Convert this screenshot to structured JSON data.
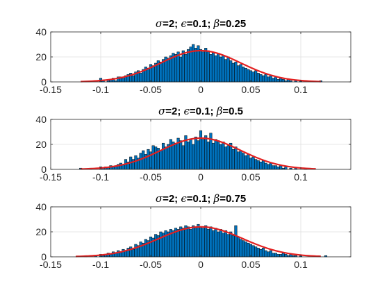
{
  "chart_data": [
    {
      "type": "bar",
      "title": "σ=2; ϵ=0.1; β=0.25",
      "title_parts": [
        "σ",
        "=2; ",
        "ϵ",
        "=0.1; ",
        "β",
        "=0.25"
      ],
      "xlim": [
        -0.15,
        0.15
      ],
      "ylim": [
        0,
        40
      ],
      "xticks": [
        "-0.15",
        "-0.1",
        "-0.05",
        "0",
        "0.05",
        "0.1"
      ],
      "yticks": [
        "0",
        "20",
        "40"
      ],
      "grid": true,
      "bin_width": 0.0025,
      "bins": [
        {
          "x": -0.1,
          "y": 3
        },
        {
          "x": -0.0975,
          "y": 1
        },
        {
          "x": -0.0925,
          "y": 2
        },
        {
          "x": -0.09,
          "y": 2
        },
        {
          "x": -0.0875,
          "y": 3
        },
        {
          "x": -0.085,
          "y": 1
        },
        {
          "x": -0.0825,
          "y": 4
        },
        {
          "x": -0.08,
          "y": 4
        },
        {
          "x": -0.0775,
          "y": 3
        },
        {
          "x": -0.075,
          "y": 5
        },
        {
          "x": -0.0725,
          "y": 6
        },
        {
          "x": -0.07,
          "y": 7
        },
        {
          "x": -0.0675,
          "y": 5
        },
        {
          "x": -0.065,
          "y": 8
        },
        {
          "x": -0.0625,
          "y": 9
        },
        {
          "x": -0.06,
          "y": 7
        },
        {
          "x": -0.0575,
          "y": 10
        },
        {
          "x": -0.055,
          "y": 12
        },
        {
          "x": -0.0525,
          "y": 11
        },
        {
          "x": -0.05,
          "y": 14
        },
        {
          "x": -0.0475,
          "y": 13
        },
        {
          "x": -0.045,
          "y": 15
        },
        {
          "x": -0.0425,
          "y": 17
        },
        {
          "x": -0.04,
          "y": 16
        },
        {
          "x": -0.0375,
          "y": 18
        },
        {
          "x": -0.035,
          "y": 20
        },
        {
          "x": -0.0325,
          "y": 19
        },
        {
          "x": -0.03,
          "y": 21
        },
        {
          "x": -0.0275,
          "y": 23
        },
        {
          "x": -0.025,
          "y": 22
        },
        {
          "x": -0.0225,
          "y": 24
        },
        {
          "x": -0.02,
          "y": 20
        },
        {
          "x": -0.0175,
          "y": 25
        },
        {
          "x": -0.015,
          "y": 22
        },
        {
          "x": -0.0125,
          "y": 26
        },
        {
          "x": -0.01,
          "y": 28
        },
        {
          "x": -0.0075,
          "y": 30
        },
        {
          "x": -0.005,
          "y": 27
        },
        {
          "x": -0.0025,
          "y": 29
        },
        {
          "x": 0.0,
          "y": 26
        },
        {
          "x": 0.0025,
          "y": 24
        },
        {
          "x": 0.005,
          "y": 27
        },
        {
          "x": 0.0075,
          "y": 25
        },
        {
          "x": 0.01,
          "y": 22
        },
        {
          "x": 0.0125,
          "y": 24
        },
        {
          "x": 0.015,
          "y": 21
        },
        {
          "x": 0.0175,
          "y": 23
        },
        {
          "x": 0.02,
          "y": 20
        },
        {
          "x": 0.0225,
          "y": 21
        },
        {
          "x": 0.025,
          "y": 18
        },
        {
          "x": 0.0275,
          "y": 20
        },
        {
          "x": 0.03,
          "y": 17
        },
        {
          "x": 0.0325,
          "y": 15
        },
        {
          "x": 0.035,
          "y": 16
        },
        {
          "x": 0.0375,
          "y": 13
        },
        {
          "x": 0.04,
          "y": 14
        },
        {
          "x": 0.0425,
          "y": 12
        },
        {
          "x": 0.045,
          "y": 11
        },
        {
          "x": 0.0475,
          "y": 10
        },
        {
          "x": 0.05,
          "y": 9
        },
        {
          "x": 0.0525,
          "y": 8
        },
        {
          "x": 0.055,
          "y": 9
        },
        {
          "x": 0.0575,
          "y": 7
        },
        {
          "x": 0.06,
          "y": 6
        },
        {
          "x": 0.0625,
          "y": 5
        },
        {
          "x": 0.065,
          "y": 6
        },
        {
          "x": 0.0675,
          "y": 4
        },
        {
          "x": 0.07,
          "y": 5
        },
        {
          "x": 0.0725,
          "y": 3
        },
        {
          "x": 0.075,
          "y": 4
        },
        {
          "x": 0.0775,
          "y": 2
        },
        {
          "x": 0.08,
          "y": 3
        },
        {
          "x": 0.0825,
          "y": 2
        },
        {
          "x": 0.085,
          "y": 1
        },
        {
          "x": 0.0875,
          "y": 2
        },
        {
          "x": 0.09,
          "y": 1
        },
        {
          "x": 0.095,
          "y": 1
        },
        {
          "x": 0.1,
          "y": 1
        },
        {
          "x": 0.12,
          "y": 1
        }
      ],
      "fit": {
        "type": "normal",
        "mean": 0,
        "peak": 25,
        "std": 0.04,
        "x_range": [
          -0.12,
          0.12
        ]
      }
    },
    {
      "type": "bar",
      "title": "σ=2; ϵ=0.1; β=0.5",
      "title_parts": [
        "σ",
        "=2; ",
        "ϵ",
        "=0.1; ",
        "β",
        "=0.5"
      ],
      "xlim": [
        -0.15,
        0.15
      ],
      "ylim": [
        0,
        40
      ],
      "xticks": [
        "-0.15",
        "-0.1",
        "-0.05",
        "0",
        "0.05",
        "0.1"
      ],
      "yticks": [
        "0",
        "20",
        "40"
      ],
      "grid": true,
      "bin_width": 0.0025,
      "bins": [
        {
          "x": -0.12,
          "y": 1
        },
        {
          "x": -0.11,
          "y": 1
        },
        {
          "x": -0.1,
          "y": 2
        },
        {
          "x": -0.0975,
          "y": 1
        },
        {
          "x": -0.095,
          "y": 2
        },
        {
          "x": -0.0925,
          "y": 2
        },
        {
          "x": -0.09,
          "y": 3
        },
        {
          "x": -0.0875,
          "y": 2
        },
        {
          "x": -0.085,
          "y": 3
        },
        {
          "x": -0.0825,
          "y": 4
        },
        {
          "x": -0.08,
          "y": 5
        },
        {
          "x": -0.0775,
          "y": 4
        },
        {
          "x": -0.075,
          "y": 8
        },
        {
          "x": -0.0725,
          "y": 6
        },
        {
          "x": -0.07,
          "y": 10
        },
        {
          "x": -0.0675,
          "y": 8
        },
        {
          "x": -0.065,
          "y": 11
        },
        {
          "x": -0.0625,
          "y": 9
        },
        {
          "x": -0.06,
          "y": 13
        },
        {
          "x": -0.0575,
          "y": 15
        },
        {
          "x": -0.055,
          "y": 12
        },
        {
          "x": -0.0525,
          "y": 16
        },
        {
          "x": -0.05,
          "y": 14
        },
        {
          "x": -0.0475,
          "y": 19
        },
        {
          "x": -0.045,
          "y": 18
        },
        {
          "x": -0.0425,
          "y": 17
        },
        {
          "x": -0.04,
          "y": 15
        },
        {
          "x": -0.0375,
          "y": 21
        },
        {
          "x": -0.035,
          "y": 18
        },
        {
          "x": -0.0325,
          "y": 20
        },
        {
          "x": -0.03,
          "y": 24
        },
        {
          "x": -0.0275,
          "y": 22
        },
        {
          "x": -0.025,
          "y": 21
        },
        {
          "x": -0.0225,
          "y": 25
        },
        {
          "x": -0.02,
          "y": 23
        },
        {
          "x": -0.0175,
          "y": 19
        },
        {
          "x": -0.015,
          "y": 27
        },
        {
          "x": -0.0125,
          "y": 22
        },
        {
          "x": -0.01,
          "y": 24
        },
        {
          "x": -0.0075,
          "y": 20
        },
        {
          "x": -0.005,
          "y": 26
        },
        {
          "x": -0.0025,
          "y": 23
        },
        {
          "x": 0.0,
          "y": 31
        },
        {
          "x": 0.0025,
          "y": 24
        },
        {
          "x": 0.005,
          "y": 27
        },
        {
          "x": 0.0075,
          "y": 22
        },
        {
          "x": 0.01,
          "y": 29
        },
        {
          "x": 0.0125,
          "y": 21
        },
        {
          "x": 0.015,
          "y": 24
        },
        {
          "x": 0.0175,
          "y": 23
        },
        {
          "x": 0.02,
          "y": 20
        },
        {
          "x": 0.0225,
          "y": 22
        },
        {
          "x": 0.025,
          "y": 18
        },
        {
          "x": 0.0275,
          "y": 19
        },
        {
          "x": 0.03,
          "y": 21
        },
        {
          "x": 0.0325,
          "y": 16
        },
        {
          "x": 0.035,
          "y": 18
        },
        {
          "x": 0.0375,
          "y": 14
        },
        {
          "x": 0.04,
          "y": 15
        },
        {
          "x": 0.0425,
          "y": 13
        },
        {
          "x": 0.045,
          "y": 11
        },
        {
          "x": 0.0475,
          "y": 12
        },
        {
          "x": 0.05,
          "y": 9
        },
        {
          "x": 0.0525,
          "y": 10
        },
        {
          "x": 0.055,
          "y": 8
        },
        {
          "x": 0.0575,
          "y": 7
        },
        {
          "x": 0.06,
          "y": 6
        },
        {
          "x": 0.0625,
          "y": 7
        },
        {
          "x": 0.065,
          "y": 5
        },
        {
          "x": 0.0675,
          "y": 4
        },
        {
          "x": 0.07,
          "y": 5
        },
        {
          "x": 0.0725,
          "y": 3
        },
        {
          "x": 0.075,
          "y": 3
        },
        {
          "x": 0.0775,
          "y": 2
        },
        {
          "x": 0.08,
          "y": 3
        },
        {
          "x": 0.0825,
          "y": 1
        },
        {
          "x": 0.085,
          "y": 2
        },
        {
          "x": 0.09,
          "y": 1
        },
        {
          "x": 0.095,
          "y": 1
        },
        {
          "x": 0.105,
          "y": 1
        }
      ],
      "fit": {
        "type": "normal",
        "mean": 0,
        "peak": 25,
        "std": 0.04,
        "x_range": [
          -0.12,
          0.115
        ]
      }
    },
    {
      "type": "bar",
      "title": "σ=2; ϵ=0.1; β=0.75",
      "title_parts": [
        "σ",
        "=2; ",
        "ϵ",
        "=0.1; ",
        "β",
        "=0.75"
      ],
      "xlim": [
        -0.15,
        0.15
      ],
      "ylim": [
        0,
        40
      ],
      "xticks": [
        "-0.15",
        "-0.1",
        "-0.05",
        "0",
        "0.05",
        "0.1"
      ],
      "yticks": [
        "0",
        "20",
        "40"
      ],
      "grid": true,
      "bin_width": 0.0025,
      "bins": [
        {
          "x": -0.115,
          "y": 1
        },
        {
          "x": -0.105,
          "y": 1
        },
        {
          "x": -0.1,
          "y": 2
        },
        {
          "x": -0.0975,
          "y": 1
        },
        {
          "x": -0.095,
          "y": 2
        },
        {
          "x": -0.0925,
          "y": 3
        },
        {
          "x": -0.09,
          "y": 2
        },
        {
          "x": -0.0875,
          "y": 4
        },
        {
          "x": -0.085,
          "y": 3
        },
        {
          "x": -0.0825,
          "y": 5
        },
        {
          "x": -0.08,
          "y": 4
        },
        {
          "x": -0.0775,
          "y": 6
        },
        {
          "x": -0.075,
          "y": 5
        },
        {
          "x": -0.0725,
          "y": 7
        },
        {
          "x": -0.07,
          "y": 8
        },
        {
          "x": -0.0675,
          "y": 6
        },
        {
          "x": -0.065,
          "y": 10
        },
        {
          "x": -0.0625,
          "y": 9
        },
        {
          "x": -0.06,
          "y": 12
        },
        {
          "x": -0.0575,
          "y": 11
        },
        {
          "x": -0.055,
          "y": 14
        },
        {
          "x": -0.0525,
          "y": 13
        },
        {
          "x": -0.05,
          "y": 16
        },
        {
          "x": -0.0475,
          "y": 15
        },
        {
          "x": -0.045,
          "y": 18
        },
        {
          "x": -0.0425,
          "y": 17
        },
        {
          "x": -0.04,
          "y": 20
        },
        {
          "x": -0.0375,
          "y": 19
        },
        {
          "x": -0.035,
          "y": 21
        },
        {
          "x": -0.0325,
          "y": 20
        },
        {
          "x": -0.03,
          "y": 22
        },
        {
          "x": -0.0275,
          "y": 21
        },
        {
          "x": -0.025,
          "y": 23
        },
        {
          "x": -0.0225,
          "y": 22
        },
        {
          "x": -0.02,
          "y": 24
        },
        {
          "x": -0.0175,
          "y": 23
        },
        {
          "x": -0.015,
          "y": 25
        },
        {
          "x": -0.0125,
          "y": 24
        },
        {
          "x": -0.01,
          "y": 22
        },
        {
          "x": -0.0075,
          "y": 25
        },
        {
          "x": -0.005,
          "y": 23
        },
        {
          "x": -0.0025,
          "y": 26
        },
        {
          "x": 0.0,
          "y": 24
        },
        {
          "x": 0.0025,
          "y": 23
        },
        {
          "x": 0.005,
          "y": 25
        },
        {
          "x": 0.0075,
          "y": 22
        },
        {
          "x": 0.01,
          "y": 24
        },
        {
          "x": 0.0125,
          "y": 21
        },
        {
          "x": 0.015,
          "y": 23
        },
        {
          "x": 0.0175,
          "y": 20
        },
        {
          "x": 0.02,
          "y": 22
        },
        {
          "x": 0.0225,
          "y": 19
        },
        {
          "x": 0.025,
          "y": 21
        },
        {
          "x": 0.0275,
          "y": 18
        },
        {
          "x": 0.03,
          "y": 20
        },
        {
          "x": 0.0325,
          "y": 17
        },
        {
          "x": 0.035,
          "y": 25
        },
        {
          "x": 0.0375,
          "y": 16
        },
        {
          "x": 0.04,
          "y": 14
        },
        {
          "x": 0.0425,
          "y": 13
        },
        {
          "x": 0.045,
          "y": 12
        },
        {
          "x": 0.0475,
          "y": 11
        },
        {
          "x": 0.05,
          "y": 10
        },
        {
          "x": 0.0525,
          "y": 9
        },
        {
          "x": 0.055,
          "y": 8
        },
        {
          "x": 0.0575,
          "y": 7
        },
        {
          "x": 0.06,
          "y": 6
        },
        {
          "x": 0.0625,
          "y": 7
        },
        {
          "x": 0.065,
          "y": 5
        },
        {
          "x": 0.0675,
          "y": 4
        },
        {
          "x": 0.07,
          "y": 5
        },
        {
          "x": 0.0725,
          "y": 3
        },
        {
          "x": 0.075,
          "y": 3
        },
        {
          "x": 0.0775,
          "y": 2
        },
        {
          "x": 0.08,
          "y": 2
        },
        {
          "x": 0.0825,
          "y": 3
        },
        {
          "x": 0.085,
          "y": 2
        },
        {
          "x": 0.0875,
          "y": 1
        },
        {
          "x": 0.09,
          "y": 2
        },
        {
          "x": 0.0925,
          "y": 1
        },
        {
          "x": 0.095,
          "y": 1
        },
        {
          "x": 0.1,
          "y": 1
        },
        {
          "x": 0.125,
          "y": 1
        }
      ],
      "fit": {
        "type": "normal",
        "mean": 0,
        "peak": 24,
        "std": 0.042,
        "x_range": [
          -0.125,
          0.12
        ]
      }
    }
  ],
  "colors": {
    "bar_fill": "#0072BD",
    "bar_edge": "#000000",
    "fit_line": "#E32020",
    "axis": "#262626",
    "grid": "#DFDFDF"
  }
}
